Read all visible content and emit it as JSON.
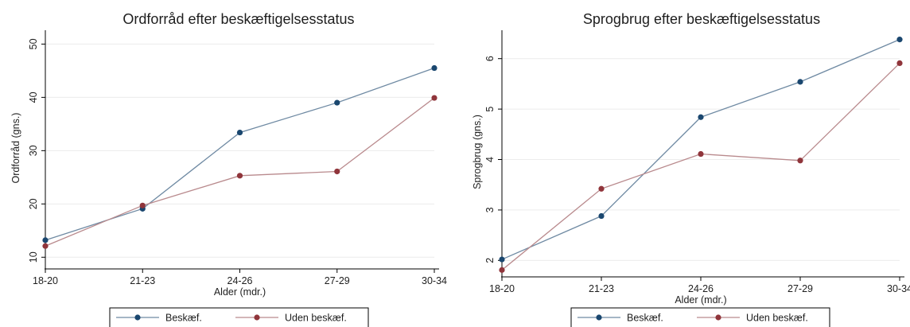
{
  "chart_data": [
    {
      "type": "line",
      "title": "Ordforråd efter beskæftigelsesstatus",
      "xlabel": "Alder (mdr.)",
      "ylabel": "Ordforråd (gns.)",
      "categories": [
        "18-20",
        "21-23",
        "24-26",
        "27-29",
        "30-34"
      ],
      "ylim": [
        9,
        52
      ],
      "yticks": [
        10,
        20,
        30,
        40,
        50
      ],
      "grid": true,
      "legend_position": "bottom",
      "series": [
        {
          "name": "Beskæf.",
          "color": "#1a476f",
          "line_color": "#6f8aa3",
          "values": [
            13.2,
            19.1,
            33.4,
            39.0,
            45.5
          ]
        },
        {
          "name": "Uden beskæf.",
          "color": "#90353b",
          "line_color": "#b98a8d",
          "values": [
            12.1,
            19.7,
            25.3,
            26.1,
            39.9
          ]
        }
      ]
    },
    {
      "type": "line",
      "title": "Sprogbrug efter beskæftigelsesstatus",
      "xlabel": "Alder (mdr.)",
      "ylabel": "Sprogbrug (gns.)",
      "categories": [
        "18-20",
        "21-23",
        "24-26",
        "27-29",
        "30-34"
      ],
      "ylim": [
        1.8,
        6.5
      ],
      "yticks": [
        2,
        3,
        4,
        5,
        6
      ],
      "grid": true,
      "legend_position": "bottom",
      "series": [
        {
          "name": "Beskæf.",
          "color": "#1a476f",
          "line_color": "#6f8aa3",
          "values": [
            2.02,
            2.88,
            4.84,
            5.54,
            6.38
          ]
        },
        {
          "name": "Uden beskæf.",
          "color": "#90353b",
          "line_color": "#b98a8d",
          "values": [
            1.81,
            3.42,
            4.11,
            3.98,
            5.91
          ]
        }
      ]
    }
  ]
}
